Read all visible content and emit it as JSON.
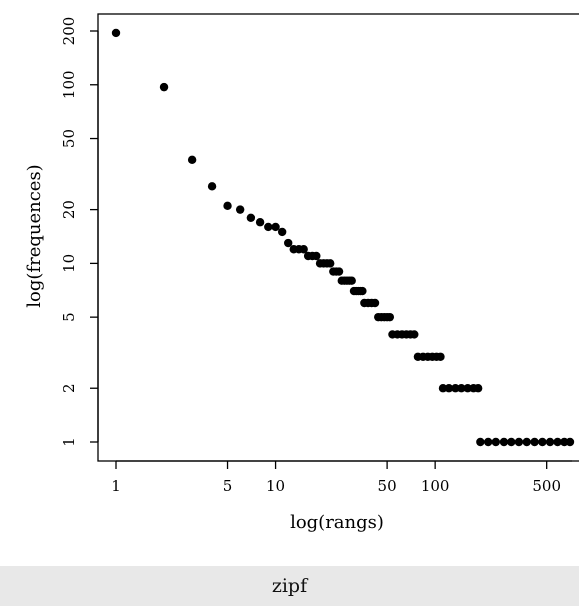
{
  "chart_data": {
    "type": "scatter",
    "xlabel": "log(rangs)",
    "ylabel": "log(frequences)",
    "x_scale": "log",
    "y_scale": "log",
    "xlim": [
      1,
      800
    ],
    "ylim": [
      1,
      210
    ],
    "x_ticks": [
      1,
      5,
      10,
      50,
      100,
      500
    ],
    "y_ticks": [
      1,
      2,
      5,
      10,
      20,
      50,
      100,
      200
    ],
    "points": [
      [
        1,
        195
      ],
      [
        2,
        97
      ],
      [
        3,
        38
      ],
      [
        4,
        27
      ],
      [
        5,
        21
      ],
      [
        6,
        20
      ],
      [
        7,
        18
      ],
      [
        8,
        17
      ],
      [
        9,
        16
      ],
      [
        10,
        16
      ],
      [
        11,
        15
      ],
      [
        12,
        13
      ],
      [
        13,
        12
      ],
      [
        14,
        12
      ],
      [
        15,
        12
      ],
      [
        16,
        11
      ],
      [
        17,
        11
      ],
      [
        18,
        11
      ],
      [
        19,
        10
      ],
      [
        20,
        10
      ],
      [
        21,
        10
      ],
      [
        22,
        10
      ],
      [
        23,
        9
      ],
      [
        24,
        9
      ],
      [
        25,
        9
      ],
      [
        26,
        8
      ],
      [
        27,
        8
      ],
      [
        28,
        8
      ],
      [
        29,
        8
      ],
      [
        30,
        8
      ],
      [
        31,
        7
      ],
      [
        32,
        7
      ],
      [
        33,
        7
      ],
      [
        34,
        7
      ],
      [
        35,
        7
      ],
      [
        36,
        6
      ],
      [
        38,
        6
      ],
      [
        40,
        6
      ],
      [
        42,
        6
      ],
      [
        44,
        5
      ],
      [
        46,
        5
      ],
      [
        48,
        5
      ],
      [
        50,
        5
      ],
      [
        52,
        5
      ],
      [
        54,
        4
      ],
      [
        58,
        4
      ],
      [
        62,
        4
      ],
      [
        66,
        4
      ],
      [
        70,
        4
      ],
      [
        74,
        4
      ],
      [
        78,
        3
      ],
      [
        84,
        3
      ],
      [
        90,
        3
      ],
      [
        96,
        3
      ],
      [
        102,
        3
      ],
      [
        108,
        3
      ],
      [
        112,
        2
      ],
      [
        122,
        2
      ],
      [
        134,
        2
      ],
      [
        146,
        2
      ],
      [
        160,
        2
      ],
      [
        174,
        2
      ],
      [
        186,
        2
      ],
      [
        192,
        1
      ],
      [
        215,
        1
      ],
      [
        240,
        1
      ],
      [
        270,
        1
      ],
      [
        300,
        1
      ],
      [
        335,
        1
      ],
      [
        375,
        1
      ],
      [
        420,
        1
      ],
      [
        470,
        1
      ],
      [
        525,
        1
      ],
      [
        585,
        1
      ],
      [
        645,
        1
      ],
      [
        700,
        1
      ]
    ]
  },
  "caption": "zipf"
}
